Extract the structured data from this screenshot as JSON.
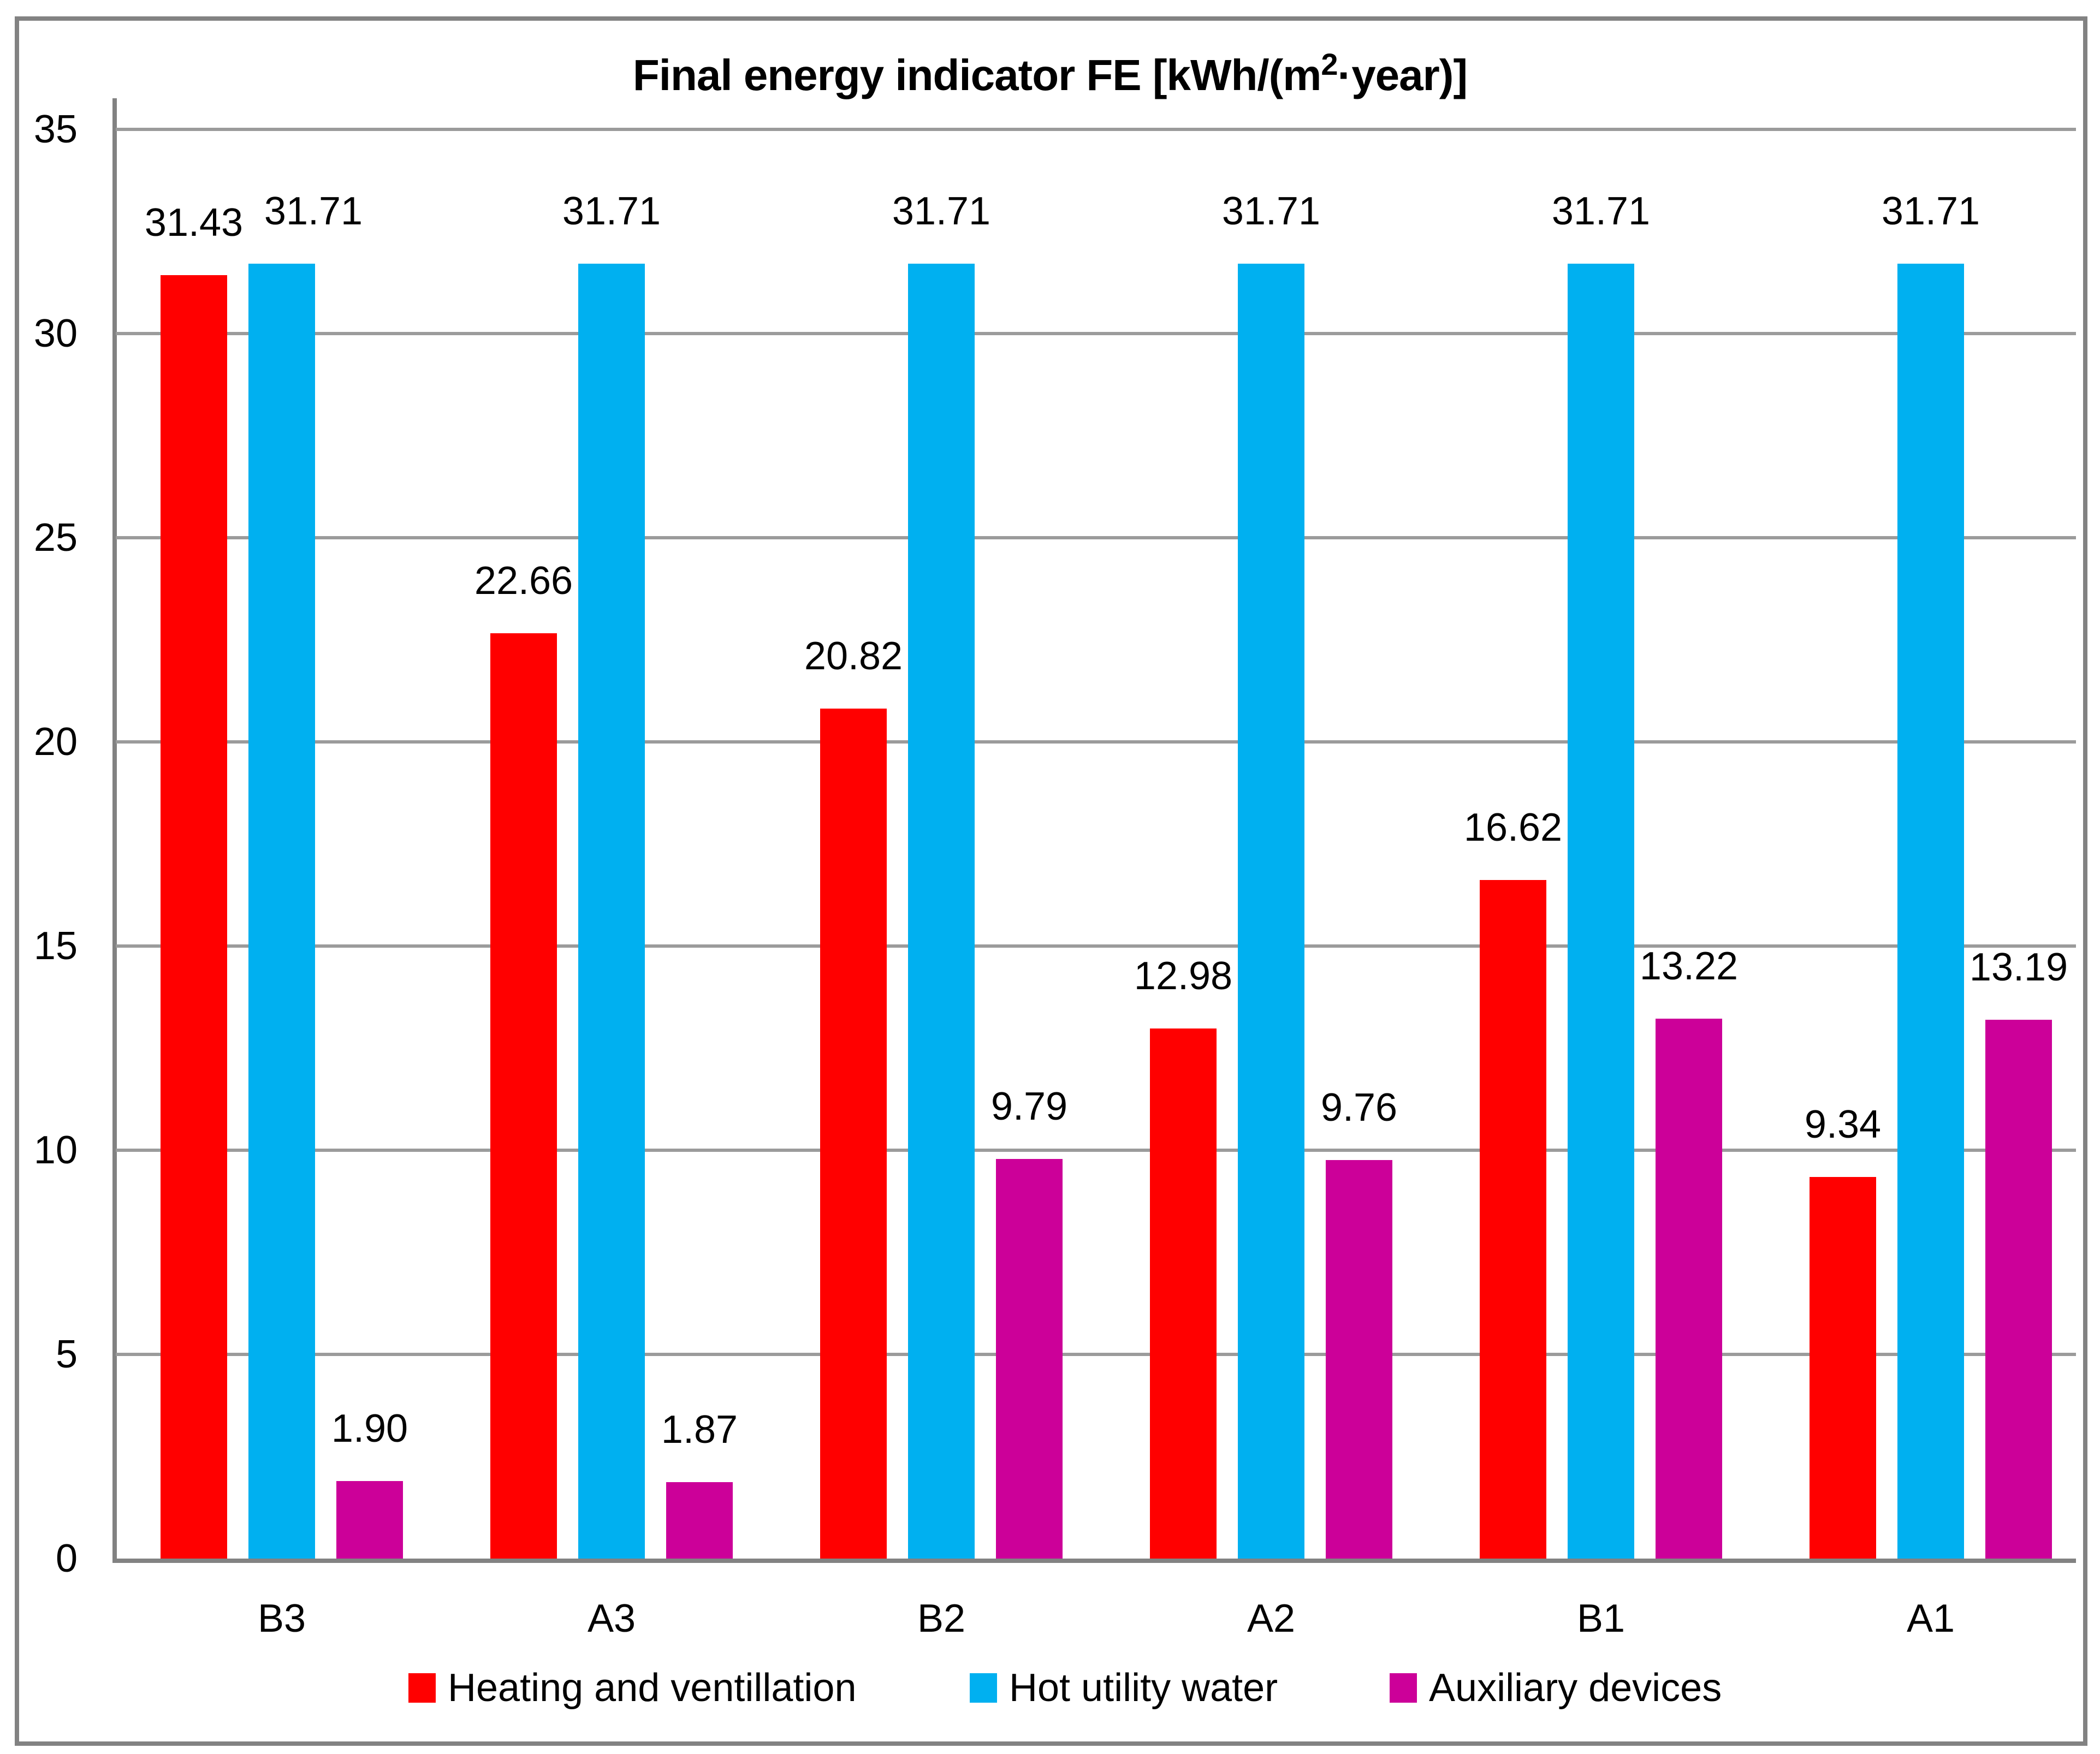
{
  "title": {
    "pre": "Final energy indicator FE [kWh/(m",
    "sup": "2",
    "post": "·year)]"
  },
  "chart_data": {
    "type": "bar",
    "title": "Final energy indicator FE [kWh/(m²·year)]",
    "categories": [
      "B3",
      "A3",
      "B2",
      "A2",
      "B1",
      "A1"
    ],
    "series": [
      {
        "name": "Heating and ventillation",
        "color": "#FF0000",
        "values": [
          31.43,
          22.66,
          20.82,
          12.98,
          16.62,
          9.34
        ]
      },
      {
        "name": "Hot utility water",
        "color": "#00B0F0",
        "values": [
          31.71,
          31.71,
          31.71,
          31.71,
          31.71,
          31.71
        ]
      },
      {
        "name": "Auxiliary devices",
        "color": "#CC0099",
        "values": [
          1.9,
          1.87,
          9.79,
          9.76,
          13.22,
          13.19
        ]
      }
    ],
    "value_labels": true,
    "label_format": "2dp",
    "xlabel": "",
    "ylabel": "",
    "ylim": [
      0,
      35
    ],
    "yticks": [
      0,
      5,
      10,
      15,
      20,
      25,
      30,
      35
    ],
    "grid": true,
    "gridline_color": "#9b9b9b",
    "axis_color": "#828282",
    "legend_position": "bottom"
  }
}
